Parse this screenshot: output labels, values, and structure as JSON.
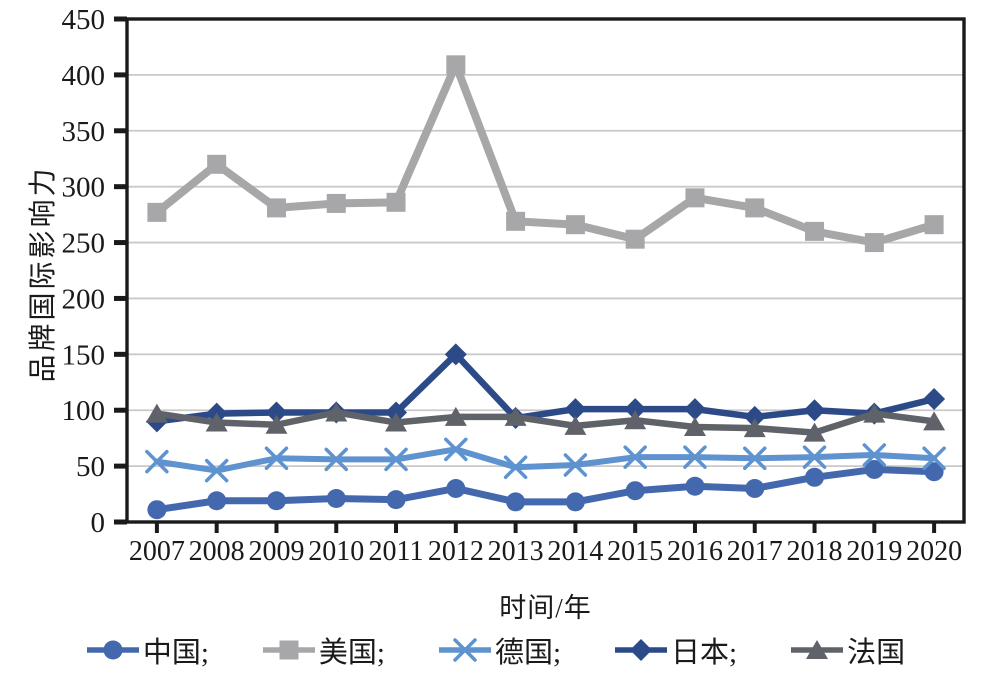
{
  "figure": {
    "background": "#ffffff",
    "axis_color": "#1a1a1a",
    "gridline_color": "#c9c9c9"
  },
  "chart_data": {
    "type": "line",
    "title": "",
    "xlabel": "时间/年",
    "ylabel": "品牌国际影响力",
    "x": [
      2007,
      2008,
      2009,
      2010,
      2011,
      2012,
      2013,
      2014,
      2015,
      2016,
      2017,
      2018,
      2019,
      2020
    ],
    "ylim": [
      0,
      450
    ],
    "yticks": [
      0,
      50,
      100,
      150,
      200,
      250,
      300,
      350,
      400,
      450
    ],
    "grid": "horizontal-only",
    "legend_position": "bottom",
    "series": [
      {
        "key": "china",
        "name": "中国",
        "legend_label": "中国;",
        "marker": "circle",
        "color": "#4468ae",
        "line_width": 7,
        "values": [
          11,
          19,
          19,
          21,
          20,
          30,
          18,
          18,
          28,
          32,
          30,
          40,
          47,
          45
        ]
      },
      {
        "key": "usa",
        "name": "美国",
        "legend_label": "美国;",
        "marker": "square",
        "color": "#a7a7a9",
        "line_width": 8,
        "values": [
          277,
          320,
          281,
          285,
          286,
          409,
          269,
          266,
          253,
          290,
          281,
          260,
          250,
          266
        ]
      },
      {
        "key": "germany",
        "name": "德国",
        "legend_label": "德国;",
        "marker": "x",
        "color": "#5e93d0",
        "line_width": 6,
        "values": [
          54,
          46,
          57,
          56,
          56,
          65,
          49,
          51,
          58,
          58,
          57,
          58,
          60,
          57
        ]
      },
      {
        "key": "japan",
        "name": "日本",
        "legend_label": "日本;",
        "marker": "diamond",
        "color": "#2d4a88",
        "line_width": 6.5,
        "values": [
          90,
          97,
          98,
          98,
          98,
          150,
          93,
          101,
          101,
          101,
          94,
          100,
          97,
          110
        ]
      },
      {
        "key": "france",
        "name": "法国",
        "legend_label": "法国",
        "marker": "triangle",
        "color": "#5f6268",
        "line_width": 6.5,
        "values": [
          97,
          89,
          87,
          98,
          89,
          94,
          94,
          86,
          91,
          85,
          84,
          80,
          97,
          90
        ]
      }
    ]
  }
}
